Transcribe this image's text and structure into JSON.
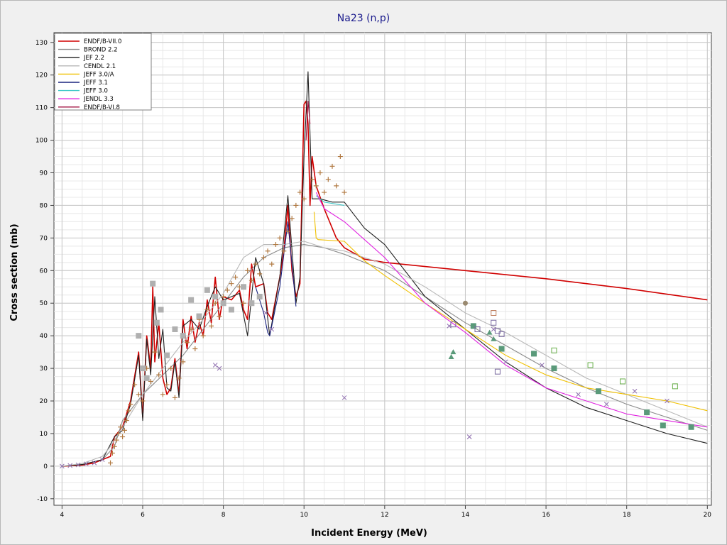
{
  "chart_data": {
    "type": "line",
    "title": "Na23 (n,p)",
    "xlabel": "Incident Energy (MeV)",
    "ylabel": "Cross section (mb)",
    "xlim": [
      3.8,
      20.1
    ],
    "ylim": [
      -12,
      133
    ],
    "x_ticks": [
      4,
      6,
      8,
      10,
      12,
      14,
      16,
      18,
      20
    ],
    "y_ticks": [
      -10,
      0,
      10,
      20,
      30,
      40,
      50,
      60,
      70,
      80,
      90,
      100,
      110,
      120,
      130
    ],
    "x_minor_step": 0.5,
    "y_minor_step": 2.5,
    "grid": true,
    "legend_position": "top-left",
    "colors": {
      "title": "#1a1a8c",
      "background": "#f0f0f0",
      "plot_background": "#ffffff"
    },
    "series": [
      {
        "name": "ENDF/B-VII.0",
        "color": "#d00000",
        "x": [
          4.0,
          4.5,
          4.8,
          5.0,
          5.2,
          5.3,
          5.5,
          5.7,
          5.9,
          6.0,
          6.1,
          6.2,
          6.25,
          6.3,
          6.4,
          6.5,
          6.6,
          6.7,
          6.8,
          6.9,
          7.0,
          7.1,
          7.2,
          7.3,
          7.4,
          7.5,
          7.6,
          7.7,
          7.8,
          7.9,
          8.0,
          8.2,
          8.4,
          8.5,
          8.6,
          8.7,
          8.8,
          9.0,
          9.1,
          9.2,
          9.4,
          9.5,
          9.6,
          9.7,
          9.8,
          9.9,
          10.0,
          10.05,
          10.1,
          10.15,
          10.2,
          10.3,
          10.5,
          10.8,
          11.0,
          11.5,
          12.0,
          14.0,
          16.0,
          18.0,
          20.0
        ],
        "y": [
          0,
          0.3,
          1.0,
          2.0,
          3.0,
          9.0,
          12.0,
          20.0,
          35.0,
          15.0,
          40.0,
          30.0,
          55.0,
          32.0,
          44.0,
          27.0,
          22.0,
          24.0,
          33.0,
          22.0,
          45.0,
          36.0,
          46.0,
          38.0,
          44.0,
          40.0,
          51.0,
          44.0,
          58.0,
          45.0,
          52.0,
          51.0,
          54.0,
          48.0,
          45.0,
          62.0,
          55.0,
          56.0,
          47.0,
          45.0,
          58.0,
          66.0,
          80.0,
          60.0,
          52.0,
          56.0,
          111.0,
          112.0,
          105.0,
          80.0,
          95.0,
          86.0,
          79.0,
          70.0,
          67.0,
          63.5,
          62.5,
          60.0,
          57.5,
          54.5,
          51.0
        ]
      },
      {
        "name": "BROND 2.2",
        "color": "#8a8a8a",
        "x": [
          4.0,
          4.5,
          5.0,
          5.3,
          5.5,
          6.0,
          6.5,
          7.0,
          7.5,
          8.0,
          8.5,
          9.0,
          9.5,
          10.0,
          10.5,
          11.0,
          12.0,
          13.0,
          14.0,
          15.0,
          16.0,
          17.0,
          18.0,
          19.0,
          20.0
        ],
        "y": [
          0,
          0.5,
          2.0,
          6.0,
          14.0,
          22.0,
          28.0,
          34.0,
          42.0,
          50.0,
          58.0,
          64.0,
          67.0,
          68.0,
          67.0,
          65.0,
          60.0,
          52.0,
          44.0,
          37.0,
          30.0,
          24.0,
          19.0,
          15.0,
          11.0
        ]
      },
      {
        "name": "JEF 2.2",
        "color": "#202020",
        "x": [
          4.0,
          4.5,
          5.0,
          5.3,
          5.5,
          5.7,
          5.9,
          6.0,
          6.1,
          6.2,
          6.3,
          6.4,
          6.5,
          6.6,
          6.7,
          6.8,
          6.9,
          7.0,
          7.2,
          7.4,
          7.6,
          7.8,
          8.0,
          8.2,
          8.4,
          8.6,
          8.8,
          9.0,
          9.15,
          9.4,
          9.6,
          9.8,
          9.9,
          10.0,
          10.1,
          10.2,
          10.4,
          10.7,
          11.0,
          11.5,
          12.0,
          13.0,
          14.0,
          15.0,
          16.0,
          17.0,
          18.0,
          19.0,
          20.0
        ],
        "y": [
          0,
          0.5,
          2.0,
          9.0,
          11.0,
          19.0,
          34.0,
          14.0,
          39.0,
          28.0,
          52.0,
          33.0,
          42.0,
          24.0,
          23.0,
          32.0,
          21.0,
          43.0,
          45.0,
          42.0,
          49.0,
          55.0,
          51.0,
          52.0,
          53.0,
          40.0,
          64.0,
          56.0,
          40.0,
          58.0,
          83.0,
          50.0,
          58.0,
          95.0,
          121.0,
          82.0,
          82.0,
          81.0,
          81.0,
          73.0,
          68.0,
          52.0,
          42.0,
          32.0,
          24.0,
          18.0,
          14.0,
          10.0,
          7.0
        ]
      },
      {
        "name": "CENDL 2.1",
        "color": "#b8b8b8",
        "x": [
          4.0,
          4.5,
          5.0,
          5.2,
          5.5,
          6.0,
          6.5,
          7.0,
          7.5,
          8.0,
          8.5,
          9.0,
          9.5,
          10.0,
          10.5,
          11.0,
          12.0,
          13.0,
          14.0,
          15.0,
          16.0,
          17.0,
          18.0,
          19.0,
          20.0
        ],
        "y": [
          0,
          0.8,
          3.0,
          6.0,
          12.0,
          22.0,
          30.0,
          38.0,
          45.0,
          53.0,
          64.0,
          68.0,
          68.0,
          69.0,
          67.0,
          66.0,
          62.0,
          55.0,
          47.0,
          41.0,
          34.0,
          27.0,
          22.0,
          17.0,
          12.0
        ]
      },
      {
        "name": "JEFF 3.0/A",
        "color": "#f0c000",
        "x": [
          10.25,
          10.3,
          10.35,
          11.0,
          11.5,
          12.0,
          13.0,
          14.0,
          15.0,
          16.0,
          17.0,
          18.0,
          19.0,
          20.0
        ],
        "y": [
          78.0,
          70.0,
          69.5,
          69.0,
          63.0,
          58.5,
          50.0,
          42.0,
          34.0,
          28.0,
          24.0,
          22.0,
          20.0,
          17.0
        ]
      },
      {
        "name": "JEFF 3.1",
        "color": "#1a237e",
        "x": [
          8.8,
          9.0,
          9.1,
          9.15,
          9.4,
          9.6,
          9.8
        ],
        "y": [
          55.0,
          47.0,
          41.0,
          40.0,
          55.0,
          75.0,
          49.0
        ]
      },
      {
        "name": "JEFF 3.0",
        "color": "#40c8c8",
        "x": [
          10.3,
          10.5,
          11.0
        ],
        "y": [
          83.0,
          81.0,
          80.0
        ]
      },
      {
        "name": "JENDL 3.3",
        "color": "#e020e0",
        "x": [
          10.3,
          10.5,
          11.0,
          12.0,
          13.0,
          14.0,
          15.0,
          16.0,
          17.0,
          18.0,
          19.0,
          20.0
        ],
        "y": [
          84.0,
          79.0,
          75.0,
          64.0,
          50.0,
          41.0,
          31.0,
          24.0,
          20.0,
          16.0,
          14.0,
          12.0
        ]
      },
      {
        "name": "ENDF/B-VI.8",
        "color": "#a01040",
        "x": [
          10.05,
          10.1,
          10.15
        ],
        "y": [
          100.0,
          112.0,
          105.0
        ]
      }
    ],
    "experimental_points": [
      {
        "marker": "plus",
        "color": "#b07840",
        "x": [
          5.2,
          5.25,
          5.3,
          5.35,
          5.4,
          5.45,
          5.5,
          5.55,
          5.6,
          5.65,
          5.7,
          5.8,
          5.9,
          6.0,
          6.1,
          6.2,
          6.3,
          6.4,
          6.5,
          6.6,
          6.7,
          6.8,
          6.9,
          7.0,
          7.1,
          7.2,
          7.3,
          7.4,
          7.5,
          7.6,
          7.7,
          7.8,
          7.9,
          8.0,
          8.1,
          8.2,
          8.3,
          8.4,
          8.5,
          8.6,
          8.7,
          8.8,
          8.9,
          9.0,
          9.1,
          9.2,
          9.3,
          9.4,
          9.5,
          9.6,
          9.7,
          9.8,
          9.9,
          10.0,
          10.2,
          10.3,
          10.4,
          10.5,
          10.6,
          10.7,
          10.8,
          10.9,
          11.0
        ],
        "y": [
          1.0,
          4.0,
          6.0,
          8.0,
          10.0,
          12.0,
          9.0,
          11.0,
          14.0,
          17.0,
          19.0,
          25.0,
          22.0,
          20.0,
          30.0,
          26.0,
          35.0,
          28.0,
          22.0,
          25.0,
          30.0,
          21.0,
          27.0,
          32.0,
          38.0,
          42.0,
          36.0,
          45.0,
          40.0,
          48.0,
          43.0,
          50.0,
          46.0,
          52.0,
          54.0,
          56.0,
          58.0,
          55.0,
          50.0,
          60.0,
          57.0,
          62.0,
          59.0,
          64.0,
          66.0,
          62.0,
          68.0,
          70.0,
          66.0,
          72.0,
          76.0,
          80.0,
          84.0,
          82.0,
          88.0,
          86.0,
          90.0,
          84.0,
          88.0,
          92.0,
          86.0,
          95.0,
          84.0
        ]
      },
      {
        "marker": "filled-square",
        "color": "#b0b0b0",
        "x": [
          5.9,
          6.0,
          6.1,
          6.25,
          6.35,
          6.45,
          6.6,
          6.8,
          7.0,
          7.2,
          7.4,
          7.6,
          7.8,
          8.0,
          8.2,
          8.5,
          8.7,
          8.9
        ],
        "y": [
          40.0,
          30.0,
          27.0,
          56.0,
          44.0,
          48.0,
          34.0,
          42.0,
          40.0,
          51.0,
          46.0,
          54.0,
          52.0,
          50.0,
          48.0,
          55.0,
          50.0,
          52.0
        ]
      },
      {
        "marker": "cross",
        "color": "#9070b0",
        "x": [
          4.0,
          4.2,
          4.4,
          4.6,
          4.8,
          5.0,
          7.8,
          7.9,
          9.05,
          9.2,
          11.0,
          13.6,
          14.1,
          14.7,
          15.0,
          15.9,
          16.8,
          17.5,
          18.2,
          19.0,
          14.1
        ],
        "y": [
          0,
          0.2,
          0.4,
          0.7,
          1.0,
          2.0,
          31.0,
          30.0,
          47.0,
          42.0,
          21.0,
          43.0,
          9.0,
          42.0,
          32.0,
          31.0,
          22.0,
          19.0,
          23.0,
          20.0,
          9.0
        ]
      },
      {
        "marker": "filled-square",
        "color": "#5a9a7a",
        "x": [
          14.2,
          14.9,
          15.7,
          16.2,
          17.3,
          18.5,
          18.9,
          19.6
        ],
        "y": [
          43.0,
          36.0,
          34.5,
          30.0,
          23.0,
          16.5,
          12.5,
          12.0
        ]
      },
      {
        "marker": "open-square",
        "color": "#6ab04c",
        "x": [
          16.2,
          17.1,
          17.9,
          19.2
        ],
        "y": [
          35.5,
          31.0,
          26.0,
          24.5
        ]
      },
      {
        "marker": "triangle",
        "color": "#5a9a7a",
        "x": [
          13.65,
          13.7,
          14.2,
          14.6,
          14.7
        ],
        "y": [
          33.5,
          35.0,
          43.0,
          41.0,
          39.0
        ]
      },
      {
        "marker": "open-square",
        "color": "#7a6aa0",
        "x": [
          13.7,
          14.3,
          14.7,
          14.8,
          14.9,
          14.8
        ],
        "y": [
          43.5,
          42.0,
          44.0,
          41.5,
          40.5,
          29.0
        ]
      },
      {
        "marker": "open-square",
        "color": "#c08060",
        "x": [
          14.7
        ],
        "y": [
          47.0
        ]
      },
      {
        "marker": "filled-circle",
        "color": "#9a8a70",
        "x": [
          14.0
        ],
        "y": [
          50.0
        ]
      }
    ]
  }
}
